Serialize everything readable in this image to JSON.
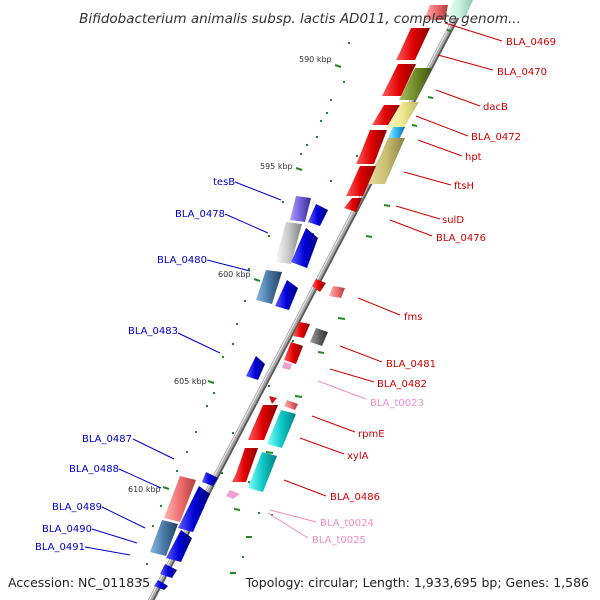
{
  "title": "Bifidobacterium animalis subsp. lactis AD011, complete genom...",
  "footer": {
    "accession": "Accession: NC_011835",
    "summary": "Topology: circular; Length: 1,933,695 bp; Genes: 1,586"
  },
  "colors": {
    "backbone": "#a8a8a8",
    "forward_strand": "#e00000",
    "reverse_strand": "#0000cc",
    "tick": "#1f8a1f",
    "trna": "#f08cc0",
    "rrna_like": "#ff6f6f"
  },
  "scale_marks": [
    {
      "label": "590 kbp"
    },
    {
      "label": "595 kbp"
    },
    {
      "label": "600 kbp"
    },
    {
      "label": "605 kbp"
    },
    {
      "label": "610 kbp"
    }
  ],
  "forward_labels": [
    "BLA_0469",
    "BLA_0470",
    "dacB",
    "BLA_0472",
    "hpt",
    "ftsH",
    "sulD",
    "BLA_0476",
    "fms",
    "BLA_0481",
    "BLA_0482",
    "BLA_t0023",
    "rpmE",
    "xylA",
    "BLA_0486",
    "BLA_t0024",
    "BLA_t0025"
  ],
  "reverse_labels": [
    "tesB",
    "BLA_0478",
    "BLA_0480",
    "BLA_0483",
    "BLA_0487",
    "BLA_0488",
    "BLA_0489",
    "BLA_0490",
    "BLA_0491"
  ]
}
